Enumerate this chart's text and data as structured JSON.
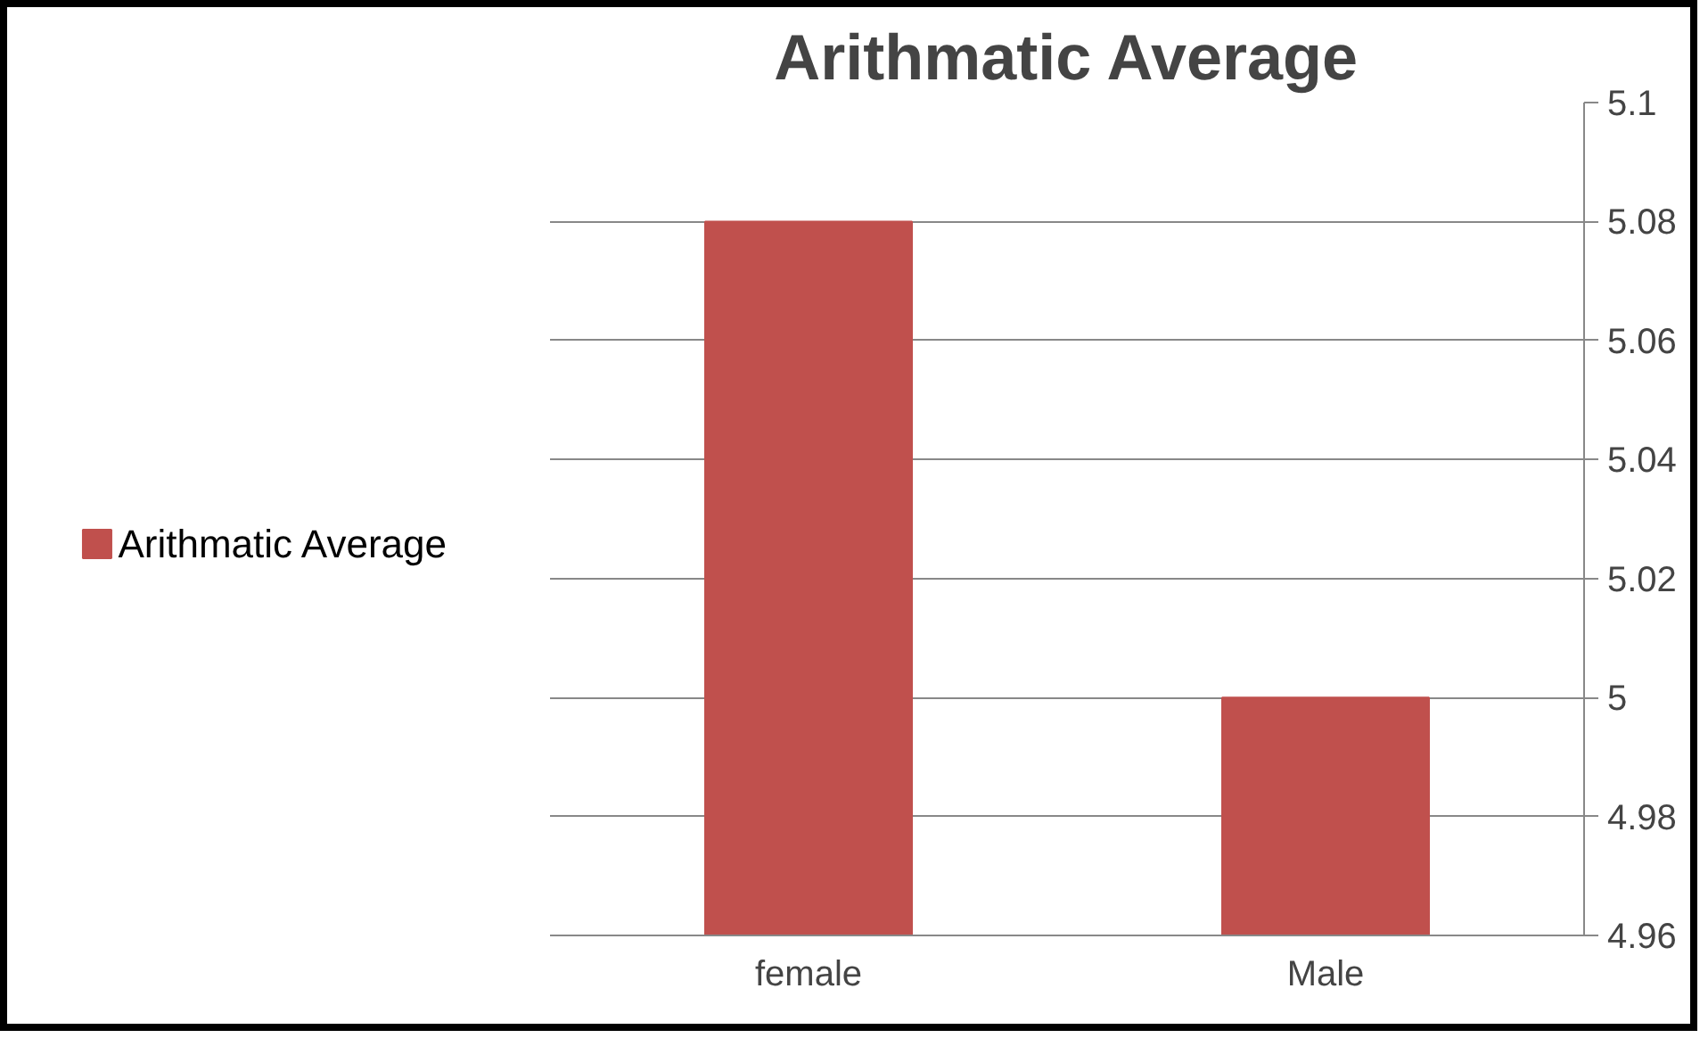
{
  "chart_data": {
    "type": "bar",
    "title": "Arithmatic Average",
    "categories": [
      "female",
      "Male"
    ],
    "series": [
      {
        "name": "Arithmatic Average",
        "color": "#c0504d",
        "values": [
          5.08,
          5.0
        ]
      }
    ],
    "ylim": [
      4.96,
      5.1
    ],
    "yticks": [
      4.96,
      4.98,
      5,
      5.02,
      5.04,
      5.06,
      5.08,
      5.1
    ],
    "grid": "y",
    "legend": "left"
  }
}
